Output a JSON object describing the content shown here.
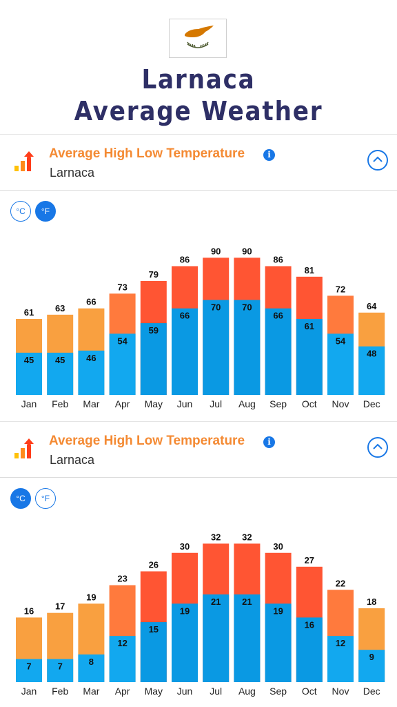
{
  "page": {
    "title_line1": "Larnaca",
    "title_line2": "Average Weather"
  },
  "sections": [
    {
      "header": {
        "title": "Average High Low Temperature",
        "subtitle": "Larnaca",
        "info_icon": "info-icon",
        "collapse_icon": "chevron-up-icon"
      },
      "units": {
        "celsius_label": "°C",
        "fahrenheit_label": "°F",
        "active": "F"
      }
    },
    {
      "header": {
        "title": "Average High Low Temperature",
        "subtitle": "Larnaca",
        "info_icon": "info-icon",
        "collapse_icon": "chevron-up-icon"
      },
      "units": {
        "celsius_label": "°C",
        "fahrenheit_label": "°F",
        "active": "C"
      }
    }
  ],
  "colors": {
    "high_warm": "#f9a040",
    "high_mid": "#ff7a3d",
    "high_hot": "#ff5533",
    "low_cool": "#12a8ef",
    "low_warm": "#0a99e3",
    "accent": "#1877e6",
    "title": "#2e2f66",
    "header_title": "#f48a33"
  },
  "chart_data": [
    {
      "type": "bar",
      "unit": "°F",
      "categories": [
        "Jan",
        "Feb",
        "Mar",
        "Apr",
        "May",
        "Jun",
        "Jul",
        "Aug",
        "Sep",
        "Oct",
        "Nov",
        "Dec"
      ],
      "series": [
        {
          "values": [
            61,
            63,
            66,
            73,
            79,
            86,
            90,
            90,
            86,
            81,
            72,
            64
          ]
        },
        {
          "values": [
            45,
            45,
            46,
            54,
            59,
            66,
            70,
            70,
            66,
            61,
            54,
            48
          ]
        }
      ],
      "ylim": [
        25,
        95
      ]
    },
    {
      "type": "bar",
      "unit": "°C",
      "categories": [
        "Jan",
        "Feb",
        "Mar",
        "Apr",
        "May",
        "Jun",
        "Jul",
        "Aug",
        "Sep",
        "Oct",
        "Nov",
        "Dec"
      ],
      "series": [
        {
          "values": [
            16,
            17,
            19,
            23,
            26,
            30,
            32,
            32,
            30,
            27,
            22,
            18
          ]
        },
        {
          "values": [
            7,
            7,
            8,
            12,
            15,
            19,
            21,
            21,
            19,
            16,
            12,
            9
          ]
        }
      ],
      "ylim": [
        2,
        34
      ]
    }
  ]
}
